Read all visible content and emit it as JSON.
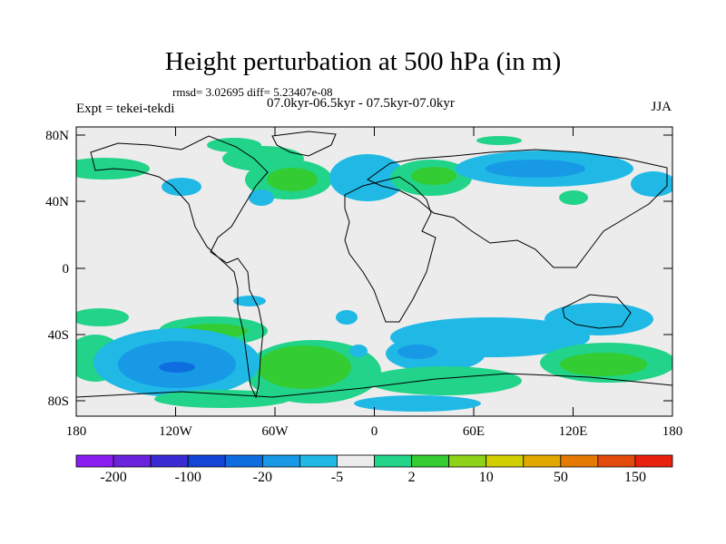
{
  "title": "Height perturbation at 500 hPa (in m)",
  "stats": "rmsd= 3.02695 diff= 5.23407e-08",
  "expt": "Expt = tekei-tekdi",
  "period": "07.0kyr-06.5kyr - 07.5kyr-07.0kyr",
  "season": "JJA",
  "lat_labels": [
    "80N",
    "40N",
    "0",
    "40S",
    "80S"
  ],
  "lon_labels": [
    "180",
    "120W",
    "60W",
    "0",
    "60E",
    "120E",
    "180"
  ],
  "colorbar": {
    "labels": [
      "-200",
      "-100",
      "-20",
      "-5",
      "2",
      "10",
      "50",
      "150"
    ],
    "colors": [
      "#8a1df0",
      "#6a22dc",
      "#3b2bd4",
      "#1244d6",
      "#0e6ee0",
      "#1899e6",
      "#20b9e6",
      "#ececec",
      "#22d38a",
      "#33cc33",
      "#8fd21a",
      "#d2cf00",
      "#e0a800",
      "#e67a00",
      "#e34a0c",
      "#e8200e"
    ]
  }
}
